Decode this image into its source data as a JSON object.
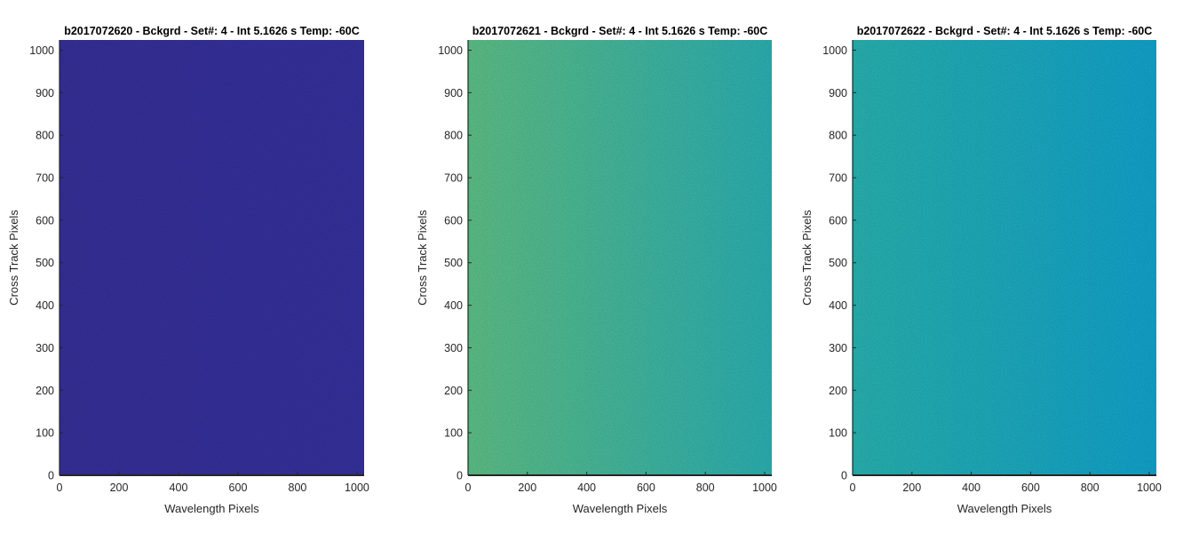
{
  "chart_data": [
    {
      "type": "heatmap",
      "title": "b2017072620 - Bckgrd - Set#: 4 - Int 5.1626 s Temp: -60C",
      "xlabel": "Wavelength Pixels",
      "ylabel": "Cross Track Pixels",
      "xlim": [
        0,
        1024
      ],
      "ylim": [
        0,
        1024
      ],
      "xticks": [
        0,
        200,
        400,
        600,
        800,
        1000
      ],
      "yticks": [
        0,
        100,
        200,
        300,
        400,
        500,
        600,
        700,
        800,
        900,
        1000
      ],
      "grid": false,
      "colormap": "parula",
      "fill_colors": {
        "left": "#352f96",
        "right": "#34309a",
        "noise": "#3d3aa8"
      }
    },
    {
      "type": "heatmap",
      "title": "b2017072621 - Bckgrd - Set#: 4 - Int 5.1626 s Temp: -60C",
      "xlabel": "Wavelength Pixels",
      "ylabel": "Cross Track Pixels",
      "xlim": [
        0,
        1024
      ],
      "ylim": [
        0,
        1024
      ],
      "xticks": [
        0,
        200,
        400,
        600,
        800,
        1000
      ],
      "yticks": [
        0,
        100,
        200,
        300,
        400,
        500,
        600,
        700,
        800,
        900,
        1000
      ],
      "grid": false,
      "colormap": "parula",
      "fill_colors": {
        "left": "#5cbd84",
        "right": "#2aadb0",
        "noise": "#8ac76a"
      }
    },
    {
      "type": "heatmap",
      "title": "b2017072622 - Bckgrd - Set#: 4 - Int 5.1626 s Temp: -60C",
      "xlabel": "Wavelength Pixels",
      "ylabel": "Cross Track Pixels",
      "xlim": [
        0,
        1024
      ],
      "ylim": [
        0,
        1024
      ],
      "xticks": [
        0,
        200,
        400,
        600,
        800,
        1000
      ],
      "yticks": [
        0,
        100,
        200,
        300,
        400,
        500,
        600,
        700,
        800,
        900,
        1000
      ],
      "grid": false,
      "colormap": "parula",
      "fill_colors": {
        "left": "#27b0ad",
        "right": "#11a0c9",
        "noise": "#3fbaa0"
      }
    }
  ]
}
